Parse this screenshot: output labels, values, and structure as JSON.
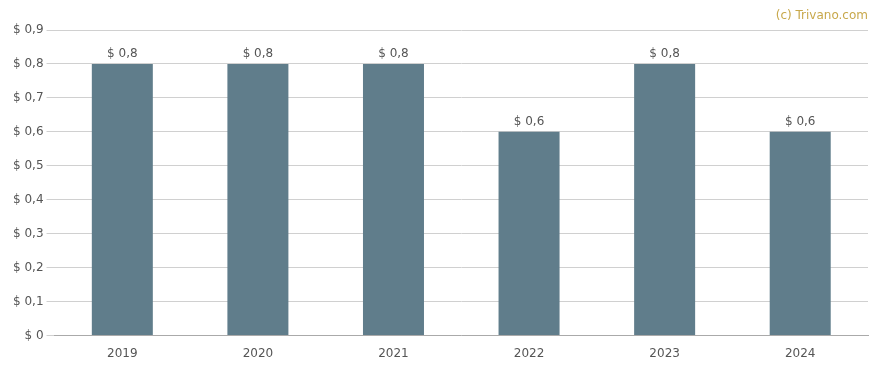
{
  "chart_data": {
    "type": "bar",
    "categories": [
      "2019",
      "2020",
      "2021",
      "2022",
      "2023",
      "2024"
    ],
    "values": [
      0.8,
      0.8,
      0.8,
      0.6,
      0.8,
      0.6
    ],
    "value_labels": [
      "$ 0,8",
      "$ 0,8",
      "$ 0,8",
      "$ 0,6",
      "$ 0,8",
      "$ 0,6"
    ],
    "data_labels": true,
    "color": "#607d8b",
    "ylim": [
      0,
      0.9
    ],
    "yticks": [
      {
        "value": 0.0,
        "label": "$ 0"
      },
      {
        "value": 0.1,
        "label": "$ 0,1"
      },
      {
        "value": 0.2,
        "label": "$ 0,2"
      },
      {
        "value": 0.3,
        "label": "$ 0,3"
      },
      {
        "value": 0.4,
        "label": "$ 0,4"
      },
      {
        "value": 0.5,
        "label": "$ 0,5"
      },
      {
        "value": 0.6,
        "label": "$ 0,6"
      },
      {
        "value": 0.7,
        "label": "$ 0,7"
      },
      {
        "value": 0.8,
        "label": "$ 0,8"
      },
      {
        "value": 0.9,
        "label": "$ 0,9"
      }
    ],
    "grid": true,
    "annotations": [
      {
        "text": "(c) Trivano.com",
        "color": "#c8a84b"
      }
    ]
  }
}
